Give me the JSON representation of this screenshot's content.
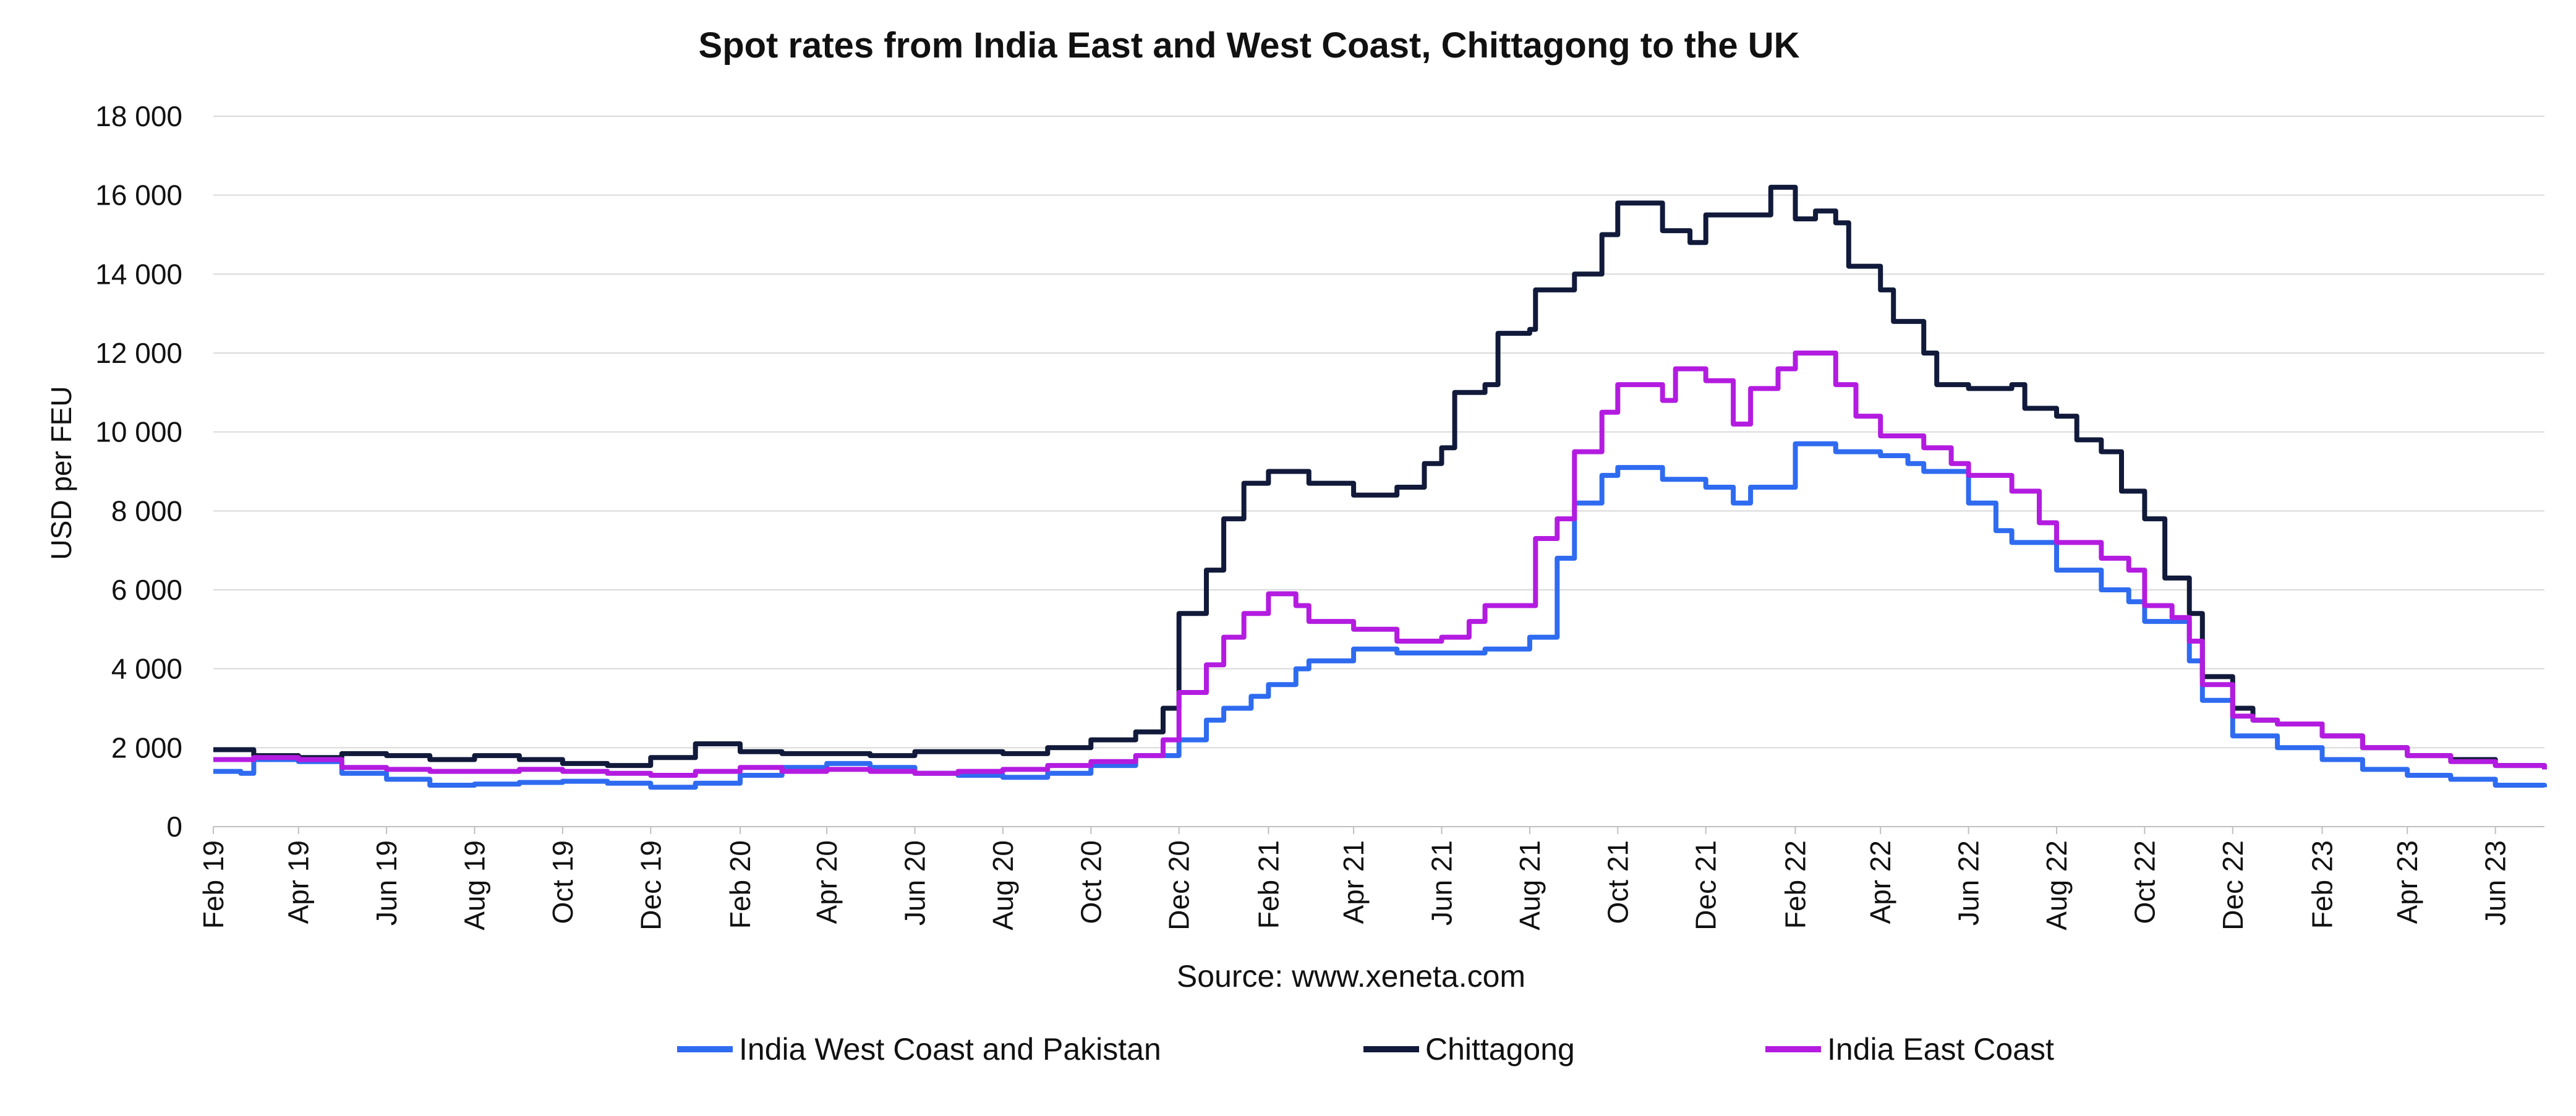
{
  "chart_data": {
    "type": "line",
    "title": "Spot rates from India East and West Coast, Chittagong to the UK",
    "source": "Source: www.xeneta.com",
    "ylabel": "USD per FEU",
    "xlabel": "",
    "ylim": [
      0,
      18000
    ],
    "y_ticks": [
      0,
      2000,
      4000,
      6000,
      8000,
      10000,
      12000,
      14000,
      16000,
      18000
    ],
    "y_tick_labels": [
      "0",
      "2 000",
      "4 000",
      "6 000",
      "8 000",
      "10 000",
      "12 000",
      "14 000",
      "16 000",
      "18 000"
    ],
    "x_ticks": [
      "2019-02-01",
      "2019-04-01",
      "2019-06-01",
      "2019-08-01",
      "2019-10-01",
      "2019-12-01",
      "2020-02-01",
      "2020-04-01",
      "2020-06-01",
      "2020-08-01",
      "2020-10-01",
      "2020-12-01",
      "2021-02-01",
      "2021-04-01",
      "2021-06-01",
      "2021-08-01",
      "2021-10-01",
      "2021-12-01",
      "2022-02-01",
      "2022-04-01",
      "2022-06-01",
      "2022-08-01",
      "2022-10-01",
      "2022-12-01",
      "2023-02-01",
      "2023-04-01",
      "2023-06-01"
    ],
    "x_tick_labels": [
      "Feb 19",
      "Apr 19",
      "Jun 19",
      "Aug 19",
      "Oct 19",
      "Dec 19",
      "Feb 20",
      "Apr 20",
      "Jun 20",
      "Aug 20",
      "Oct 20",
      "Dec 20",
      "Feb 21",
      "Apr 21",
      "Jun 21",
      "Aug 21",
      "Oct 21",
      "Dec 21",
      "Feb 22",
      "Apr 22",
      "Jun 22",
      "Aug 22",
      "Oct 22",
      "Dec 22",
      "Feb 23",
      "Apr 23",
      "Jun 23"
    ],
    "xlim": [
      "2019-02-01",
      "2023-07-05"
    ],
    "grid": true,
    "legend_position": "bottom",
    "series": [
      {
        "name": "India West Coast and Pakistan",
        "color": "#2f6bf0",
        "points": [
          [
            "2019-02-01",
            1400
          ],
          [
            "2019-02-20",
            1350
          ],
          [
            "2019-03-01",
            1700
          ],
          [
            "2019-04-01",
            1650
          ],
          [
            "2019-05-01",
            1350
          ],
          [
            "2019-06-01",
            1200
          ],
          [
            "2019-07-01",
            1050
          ],
          [
            "2019-08-01",
            1080
          ],
          [
            "2019-09-01",
            1120
          ],
          [
            "2019-10-01",
            1150
          ],
          [
            "2019-11-01",
            1100
          ],
          [
            "2019-12-01",
            1000
          ],
          [
            "2020-01-01",
            1100
          ],
          [
            "2020-02-01",
            1300
          ],
          [
            "2020-03-01",
            1500
          ],
          [
            "2020-04-01",
            1600
          ],
          [
            "2020-05-01",
            1500
          ],
          [
            "2020-06-01",
            1350
          ],
          [
            "2020-07-01",
            1300
          ],
          [
            "2020-08-01",
            1250
          ],
          [
            "2020-09-01",
            1350
          ],
          [
            "2020-10-01",
            1550
          ],
          [
            "2020-11-01",
            1800
          ],
          [
            "2020-12-01",
            2200
          ],
          [
            "2020-12-20",
            2700
          ],
          [
            "2021-01-01",
            3000
          ],
          [
            "2021-01-20",
            3300
          ],
          [
            "2021-02-01",
            3600
          ],
          [
            "2021-02-20",
            4000
          ],
          [
            "2021-03-01",
            4200
          ],
          [
            "2021-04-01",
            4500
          ],
          [
            "2021-05-01",
            4400
          ],
          [
            "2021-06-01",
            4400
          ],
          [
            "2021-07-01",
            4500
          ],
          [
            "2021-08-01",
            4800
          ],
          [
            "2021-08-20",
            6800
          ],
          [
            "2021-09-01",
            8200
          ],
          [
            "2021-09-20",
            8900
          ],
          [
            "2021-10-01",
            9100
          ],
          [
            "2021-11-01",
            8800
          ],
          [
            "2021-12-01",
            8600
          ],
          [
            "2021-12-20",
            8200
          ],
          [
            "2022-01-01",
            8600
          ],
          [
            "2022-01-20",
            8600
          ],
          [
            "2022-02-01",
            9700
          ],
          [
            "2022-03-01",
            9500
          ],
          [
            "2022-04-01",
            9400
          ],
          [
            "2022-04-20",
            9200
          ],
          [
            "2022-05-01",
            9000
          ],
          [
            "2022-06-01",
            8200
          ],
          [
            "2022-06-20",
            7500
          ],
          [
            "2022-07-01",
            7200
          ],
          [
            "2022-08-01",
            6500
          ],
          [
            "2022-09-01",
            6000
          ],
          [
            "2022-09-20",
            5700
          ],
          [
            "2022-10-01",
            5200
          ],
          [
            "2022-11-01",
            4200
          ],
          [
            "2022-11-10",
            3200
          ],
          [
            "2022-12-01",
            2300
          ],
          [
            "2023-01-01",
            2000
          ],
          [
            "2023-02-01",
            1700
          ],
          [
            "2023-03-01",
            1450
          ],
          [
            "2023-04-01",
            1300
          ],
          [
            "2023-05-01",
            1200
          ],
          [
            "2023-06-01",
            1050
          ],
          [
            "2023-07-05",
            1000
          ]
        ]
      },
      {
        "name": "Chittagong",
        "color": "#111a3a",
        "points": [
          [
            "2019-02-01",
            1950
          ],
          [
            "2019-03-01",
            1800
          ],
          [
            "2019-04-01",
            1750
          ],
          [
            "2019-05-01",
            1850
          ],
          [
            "2019-06-01",
            1800
          ],
          [
            "2019-07-01",
            1700
          ],
          [
            "2019-08-01",
            1800
          ],
          [
            "2019-09-01",
            1700
          ],
          [
            "2019-10-01",
            1600
          ],
          [
            "2019-11-01",
            1550
          ],
          [
            "2019-12-01",
            1750
          ],
          [
            "2020-01-01",
            2100
          ],
          [
            "2020-02-01",
            1900
          ],
          [
            "2020-03-01",
            1850
          ],
          [
            "2020-04-01",
            1850
          ],
          [
            "2020-05-01",
            1800
          ],
          [
            "2020-06-01",
            1900
          ],
          [
            "2020-07-01",
            1900
          ],
          [
            "2020-08-01",
            1850
          ],
          [
            "2020-09-01",
            2000
          ],
          [
            "2020-10-01",
            2200
          ],
          [
            "2020-11-01",
            2400
          ],
          [
            "2020-11-20",
            3000
          ],
          [
            "2020-12-01",
            5400
          ],
          [
            "2020-12-20",
            6500
          ],
          [
            "2021-01-01",
            7800
          ],
          [
            "2021-01-15",
            8700
          ],
          [
            "2021-02-01",
            9000
          ],
          [
            "2021-03-01",
            8700
          ],
          [
            "2021-04-01",
            8400
          ],
          [
            "2021-05-01",
            8600
          ],
          [
            "2021-05-20",
            9200
          ],
          [
            "2021-06-01",
            9600
          ],
          [
            "2021-06-10",
            11000
          ],
          [
            "2021-07-01",
            11200
          ],
          [
            "2021-07-10",
            12500
          ],
          [
            "2021-08-01",
            12600
          ],
          [
            "2021-08-05",
            13600
          ],
          [
            "2021-09-01",
            14000
          ],
          [
            "2021-09-20",
            15000
          ],
          [
            "2021-10-01",
            15800
          ],
          [
            "2021-11-01",
            15100
          ],
          [
            "2021-11-20",
            14800
          ],
          [
            "2021-12-01",
            15500
          ],
          [
            "2022-01-01",
            15500
          ],
          [
            "2022-01-15",
            16200
          ],
          [
            "2022-02-01",
            15400
          ],
          [
            "2022-02-15",
            15600
          ],
          [
            "2022-03-01",
            15300
          ],
          [
            "2022-03-10",
            14200
          ],
          [
            "2022-04-01",
            13600
          ],
          [
            "2022-04-10",
            12800
          ],
          [
            "2022-05-01",
            12000
          ],
          [
            "2022-05-10",
            11200
          ],
          [
            "2022-06-01",
            11100
          ],
          [
            "2022-07-01",
            11200
          ],
          [
            "2022-07-10",
            10600
          ],
          [
            "2022-08-01",
            10400
          ],
          [
            "2022-08-15",
            9800
          ],
          [
            "2022-09-01",
            9500
          ],
          [
            "2022-09-15",
            8500
          ],
          [
            "2022-10-01",
            7800
          ],
          [
            "2022-10-15",
            6300
          ],
          [
            "2022-11-01",
            5400
          ],
          [
            "2022-11-10",
            3800
          ],
          [
            "2022-12-01",
            3000
          ],
          [
            "2022-12-15",
            2700
          ],
          [
            "2023-01-01",
            2600
          ],
          [
            "2023-02-01",
            2300
          ],
          [
            "2023-03-01",
            2000
          ],
          [
            "2023-04-01",
            1800
          ],
          [
            "2023-05-01",
            1700
          ],
          [
            "2023-06-01",
            1550
          ],
          [
            "2023-07-05",
            1450
          ]
        ]
      },
      {
        "name": "India East Coast",
        "color": "#b31ce0",
        "points": [
          [
            "2019-02-01",
            1700
          ],
          [
            "2019-03-01",
            1750
          ],
          [
            "2019-04-01",
            1700
          ],
          [
            "2019-05-01",
            1500
          ],
          [
            "2019-06-01",
            1450
          ],
          [
            "2019-07-01",
            1400
          ],
          [
            "2019-08-01",
            1400
          ],
          [
            "2019-09-01",
            1450
          ],
          [
            "2019-10-01",
            1400
          ],
          [
            "2019-11-01",
            1350
          ],
          [
            "2019-12-01",
            1300
          ],
          [
            "2020-01-01",
            1400
          ],
          [
            "2020-02-01",
            1500
          ],
          [
            "2020-03-01",
            1400
          ],
          [
            "2020-04-01",
            1450
          ],
          [
            "2020-05-01",
            1400
          ],
          [
            "2020-06-01",
            1350
          ],
          [
            "2020-07-01",
            1400
          ],
          [
            "2020-08-01",
            1450
          ],
          [
            "2020-09-01",
            1550
          ],
          [
            "2020-10-01",
            1650
          ],
          [
            "2020-11-01",
            1800
          ],
          [
            "2020-11-20",
            2200
          ],
          [
            "2020-12-01",
            3400
          ],
          [
            "2020-12-20",
            4100
          ],
          [
            "2021-01-01",
            4800
          ],
          [
            "2021-01-15",
            5400
          ],
          [
            "2021-02-01",
            5900
          ],
          [
            "2021-02-20",
            5600
          ],
          [
            "2021-03-01",
            5200
          ],
          [
            "2021-04-01",
            5000
          ],
          [
            "2021-05-01",
            4700
          ],
          [
            "2021-06-01",
            4800
          ],
          [
            "2021-06-20",
            5200
          ],
          [
            "2021-07-01",
            5600
          ],
          [
            "2021-08-01",
            5600
          ],
          [
            "2021-08-05",
            7300
          ],
          [
            "2021-08-20",
            7800
          ],
          [
            "2021-09-01",
            9500
          ],
          [
            "2021-09-20",
            10500
          ],
          [
            "2021-10-01",
            11200
          ],
          [
            "2021-11-01",
            10800
          ],
          [
            "2021-11-10",
            11600
          ],
          [
            "2021-12-01",
            11300
          ],
          [
            "2021-12-20",
            10200
          ],
          [
            "2022-01-01",
            11100
          ],
          [
            "2022-01-20",
            11600
          ],
          [
            "2022-02-01",
            12000
          ],
          [
            "2022-03-01",
            11200
          ],
          [
            "2022-03-15",
            10400
          ],
          [
            "2022-04-01",
            9900
          ],
          [
            "2022-05-01",
            9600
          ],
          [
            "2022-05-20",
            9200
          ],
          [
            "2022-06-01",
            8900
          ],
          [
            "2022-07-01",
            8500
          ],
          [
            "2022-07-20",
            7700
          ],
          [
            "2022-08-01",
            7200
          ],
          [
            "2022-09-01",
            6800
          ],
          [
            "2022-09-20",
            6500
          ],
          [
            "2022-10-01",
            5600
          ],
          [
            "2022-10-20",
            5300
          ],
          [
            "2022-11-01",
            4700
          ],
          [
            "2022-11-10",
            3600
          ],
          [
            "2022-12-01",
            2800
          ],
          [
            "2022-12-15",
            2700
          ],
          [
            "2023-01-01",
            2600
          ],
          [
            "2023-02-01",
            2300
          ],
          [
            "2023-03-01",
            2000
          ],
          [
            "2023-04-01",
            1800
          ],
          [
            "2023-05-01",
            1650
          ],
          [
            "2023-06-01",
            1550
          ],
          [
            "2023-07-05",
            1450
          ]
        ]
      }
    ]
  }
}
